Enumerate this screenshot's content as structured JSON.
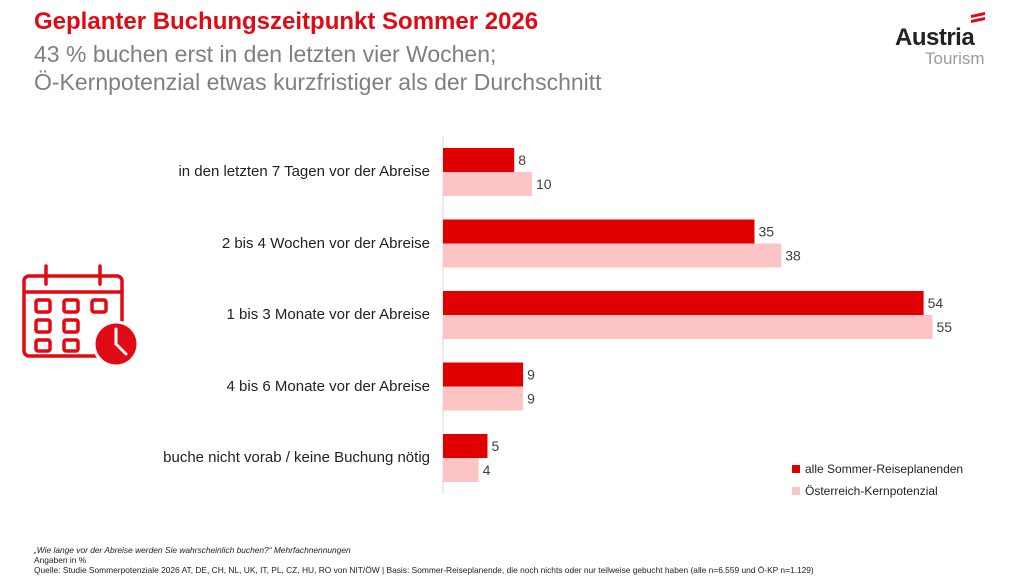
{
  "title": "Geplanter Buchungszeitpunkt Sommer 2026",
  "subtitle": [
    "43 % buchen erst in den letzten vier Wochen;",
    "Ö-Kernpotenzial etwas kurzfristiger als der Durchschnitt"
  ],
  "logo": {
    "word": "Austria",
    "sub": "Tourism",
    "flag_color": "#e10a14"
  },
  "icon": "calendar-clock-icon",
  "colors": {
    "accent": "#e10a14",
    "series1": "#e10000",
    "series2": "#fcc4c4"
  },
  "chart_data": {
    "type": "bar",
    "orientation": "horizontal",
    "categories": [
      "in den letzten 7 Tagen vor der Abreise",
      "2 bis 4 Wochen vor der Abreise",
      "1 bis 3 Monate vor der Abreise",
      "4 bis 6 Monate vor der Abreise",
      "buche nicht vorab / keine Buchung nötig"
    ],
    "series": [
      {
        "name": "alle Sommer-Reiseplanenden",
        "values": [
          8,
          35,
          54,
          9,
          5
        ],
        "color": "#e10000"
      },
      {
        "name": "Österreich-Kernpotenzial",
        "values": [
          10,
          38,
          55,
          9,
          4
        ],
        "color": "#fcc4c4"
      }
    ],
    "xlim": [
      0,
      55
    ],
    "data_labels": true,
    "grid": false,
    "legend_position": "bottom-right"
  },
  "footer": {
    "question": "„Wie lange vor der Abreise werden Sie wahrscheinlich buchen?“ Mehrfachnennungen",
    "unit": "Angaben in %",
    "source": "Quelle: Studie Sommerpotenziale 2026 AT, DE, CH, NL, UK, IT, PL, CZ, HU, RO von NIT/ÖW | Basis: Sommer-Reiseplanende, die noch nichts oder nur teilweise gebucht haben (alle n=6.559 und Ö-KP n=1.129)"
  }
}
